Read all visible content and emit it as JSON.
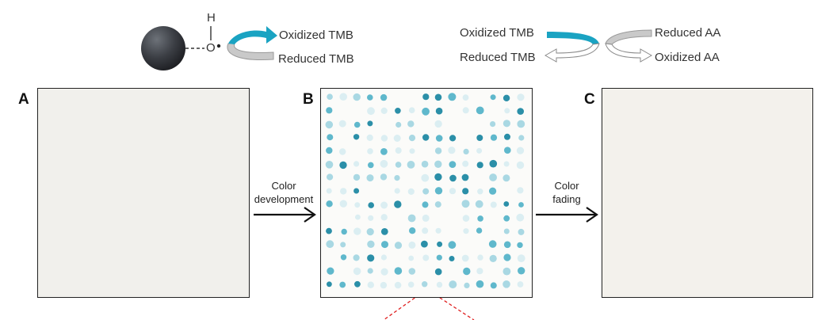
{
  "scheme_left": {
    "atom_h": "H",
    "atom_o": "O",
    "product": "Oxidized TMB",
    "reactant": "Reduced TMB",
    "colors": {
      "sphere": "#3b3e44",
      "arrow_active": "#1aa3c2",
      "arrow_passive": "#c8c8c8"
    }
  },
  "scheme_right": {
    "top_left": "Oxidized TMB",
    "bottom_left": "Reduced TMB",
    "top_right": "Reduced AA",
    "bottom_right": "Oxidized AA"
  },
  "panels": {
    "a": {
      "letter": "A"
    },
    "b": {
      "letter": "B"
    },
    "c": {
      "letter": "C"
    }
  },
  "steps": {
    "development": {
      "line1": "Color",
      "line2": "development"
    },
    "fading": {
      "line1": "Color",
      "line2": "fading"
    }
  },
  "dot_colors": {
    "strong": "#2b8fa8",
    "medium": "#5fb8cc",
    "light": "#a9d8e3",
    "faint": "#dbeef2"
  }
}
